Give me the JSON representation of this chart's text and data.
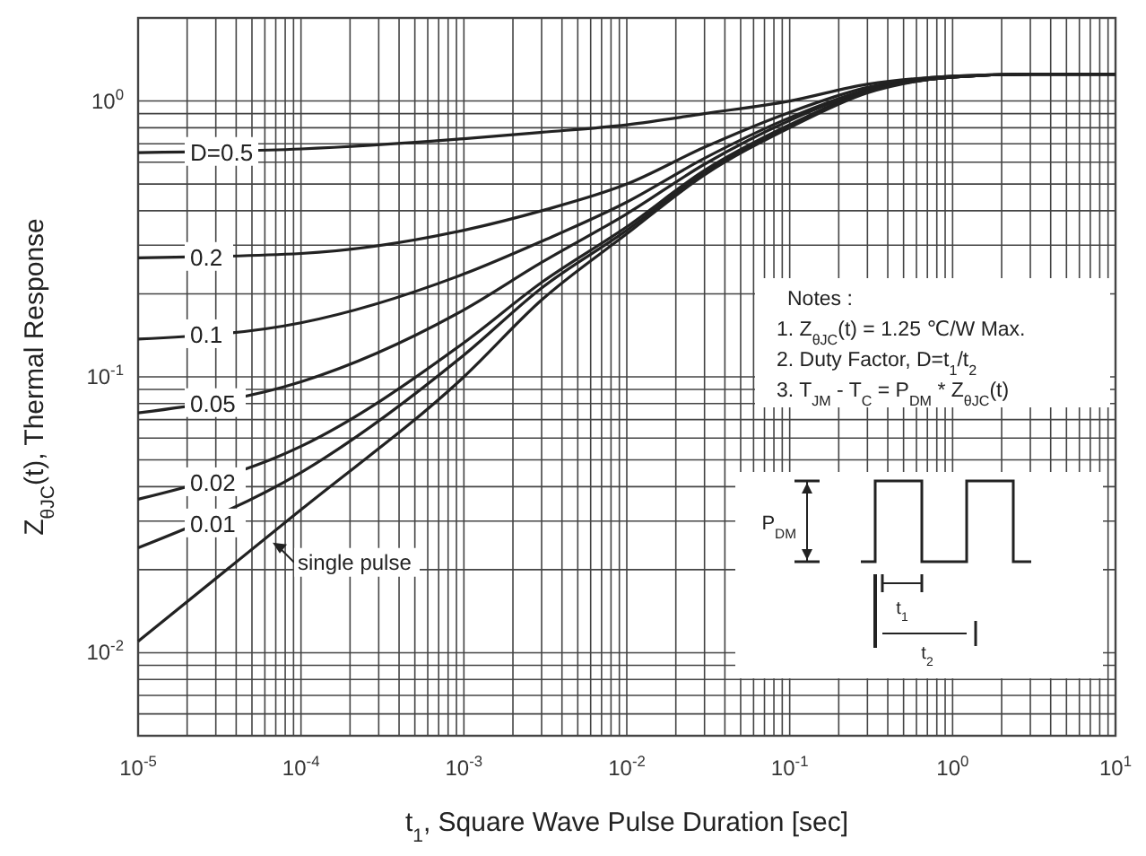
{
  "chart_data": {
    "type": "line",
    "xlabel": "t$_{1}$, Square Wave Pulse Duration [sec]",
    "ylabel": "Z$_{θJC}$(t), Thermal Response",
    "log": "xy",
    "grid": true,
    "line_style": "solid",
    "marker": "none",
    "x": [
      1e-05,
      0.0001,
      0.001,
      0.003,
      0.01,
      0.03,
      0.1,
      0.3,
      1,
      3,
      10
    ],
    "xlim": [
      1e-05,
      10
    ],
    "xticks": [
      {
        "value": 1e-05,
        "label": "10$^{-5}$"
      },
      {
        "value": 2e-05,
        "label": null
      },
      {
        "value": 3e-05,
        "label": null
      },
      {
        "value": 4e-05,
        "label": null
      },
      {
        "value": 5e-05,
        "label": null
      },
      {
        "value": 6e-05,
        "label": null
      },
      {
        "value": 7e-05,
        "label": null
      },
      {
        "value": 8e-05,
        "label": null
      },
      {
        "value": 9e-05,
        "label": null
      },
      {
        "value": 0.0001,
        "label": "10$^{-4}$"
      },
      {
        "value": 0.0002,
        "label": null
      },
      {
        "value": 0.0003,
        "label": null
      },
      {
        "value": 0.0004,
        "label": null
      },
      {
        "value": 0.0005,
        "label": null
      },
      {
        "value": 0.0006,
        "label": null
      },
      {
        "value": 0.0007,
        "label": null
      },
      {
        "value": 0.0008,
        "label": null
      },
      {
        "value": 0.0009,
        "label": null
      },
      {
        "value": 0.001,
        "label": "10$^{-3}$"
      },
      {
        "value": 0.002,
        "label": null
      },
      {
        "value": 0.003,
        "label": null
      },
      {
        "value": 0.004,
        "label": null
      },
      {
        "value": 0.005,
        "label": null
      },
      {
        "value": 0.006,
        "label": null
      },
      {
        "value": 0.007,
        "label": null
      },
      {
        "value": 0.008,
        "label": null
      },
      {
        "value": 0.009,
        "label": null
      },
      {
        "value": 0.01,
        "label": "10$^{-2}$"
      },
      {
        "value": 0.02,
        "label": null
      },
      {
        "value": 0.03,
        "label": null
      },
      {
        "value": 0.04,
        "label": null
      },
      {
        "value": 0.05,
        "label": null
      },
      {
        "value": 0.06,
        "label": null
      },
      {
        "value": 0.07,
        "label": null
      },
      {
        "value": 0.08,
        "label": null
      },
      {
        "value": 0.09,
        "label": null
      },
      {
        "value": 0.1,
        "label": "10$^{-1}$"
      },
      {
        "value": 0.2,
        "label": null
      },
      {
        "value": 0.3,
        "label": null
      },
      {
        "value": 0.4,
        "label": null
      },
      {
        "value": 0.5,
        "label": null
      },
      {
        "value": 0.6,
        "label": null
      },
      {
        "value": 0.7,
        "label": null
      },
      {
        "value": 0.8,
        "label": null
      },
      {
        "value": 0.9,
        "label": null
      },
      {
        "value": 1,
        "label": "10$^{0}$"
      },
      {
        "value": 2,
        "label": null
      },
      {
        "value": 3,
        "label": null
      },
      {
        "value": 4,
        "label": null
      },
      {
        "value": 5,
        "label": null
      },
      {
        "value": 6,
        "label": null
      },
      {
        "value": 7,
        "label": null
      },
      {
        "value": 8,
        "label": null
      },
      {
        "value": 9,
        "label": null
      },
      {
        "value": 10,
        "label": "10$^{1}$"
      }
    ],
    "ylim": [
      0.005,
      2
    ],
    "yticks": [
      {
        "value": 0.005,
        "label": null
      },
      {
        "value": 0.006,
        "label": null
      },
      {
        "value": 0.007,
        "label": null
      },
      {
        "value": 0.008,
        "label": null
      },
      {
        "value": 0.009,
        "label": null
      },
      {
        "value": 0.01,
        "label": "10$^{-2}$"
      },
      {
        "value": 0.02,
        "label": null
      },
      {
        "value": 0.03,
        "label": null
      },
      {
        "value": 0.04,
        "label": null
      },
      {
        "value": 0.05,
        "label": null
      },
      {
        "value": 0.06,
        "label": null
      },
      {
        "value": 0.07,
        "label": null
      },
      {
        "value": 0.08,
        "label": null
      },
      {
        "value": 0.09,
        "label": null
      },
      {
        "value": 0.1,
        "label": "10$^{-1}$"
      },
      {
        "value": 0.2,
        "label": null
      },
      {
        "value": 0.3,
        "label": null
      },
      {
        "value": 0.4,
        "label": null
      },
      {
        "value": 0.5,
        "label": null
      },
      {
        "value": 0.6,
        "label": null
      },
      {
        "value": 0.7,
        "label": null
      },
      {
        "value": 0.8,
        "label": null
      },
      {
        "value": 0.9,
        "label": null
      },
      {
        "value": 1,
        "label": "10$^{0}$"
      },
      {
        "value": 2,
        "label": null
      }
    ],
    "series": [
      {
        "name": "D=0.5",
        "color": "#222222",
        "values": [
          0.65,
          0.67,
          0.73,
          0.77,
          0.82,
          0.9,
          1.0,
          1.15,
          1.23,
          1.25,
          1.25
        ]
      },
      {
        "name": "0.2",
        "color": "#222222",
        "values": [
          0.27,
          0.28,
          0.34,
          0.4,
          0.5,
          0.68,
          0.91,
          1.12,
          1.23,
          1.25,
          1.25
        ]
      },
      {
        "name": "0.1",
        "color": "#222222",
        "values": [
          0.137,
          0.157,
          0.236,
          0.31,
          0.43,
          0.62,
          0.87,
          1.1,
          1.22,
          1.25,
          1.25
        ]
      },
      {
        "name": "0.05",
        "color": "#222222",
        "values": [
          0.074,
          0.096,
          0.175,
          0.26,
          0.39,
          0.59,
          0.85,
          1.09,
          1.22,
          1.25,
          1.25
        ]
      },
      {
        "name": "0.02",
        "color": "#222222",
        "values": [
          0.036,
          0.056,
          0.133,
          0.22,
          0.35,
          0.56,
          0.82,
          1.08,
          1.22,
          1.25,
          1.25
        ]
      },
      {
        "name": "0.01",
        "color": "#222222",
        "values": [
          0.024,
          0.045,
          0.12,
          0.21,
          0.34,
          0.55,
          0.81,
          1.08,
          1.22,
          1.25,
          1.25
        ]
      },
      {
        "name": "single pulse",
        "color": "#222222",
        "values": [
          0.011,
          0.033,
          0.1,
          0.19,
          0.33,
          0.54,
          0.8,
          1.07,
          1.22,
          1.25,
          1.25
        ]
      }
    ],
    "annotations": [
      "Notes :",
      "1. Z$_{θJC}$(t) = 1.25 ℃/W Max.",
      "2. Duty Factor, D=t$_{1}$/t$_{2}$",
      "3. T$_{JM}$ - T$_{C}$ = P$_{DM}$ * Z$_{θJC}$(t)",
      "P$_{DM}$",
      "t$_{1}$",
      "t$_{2}$"
    ]
  }
}
